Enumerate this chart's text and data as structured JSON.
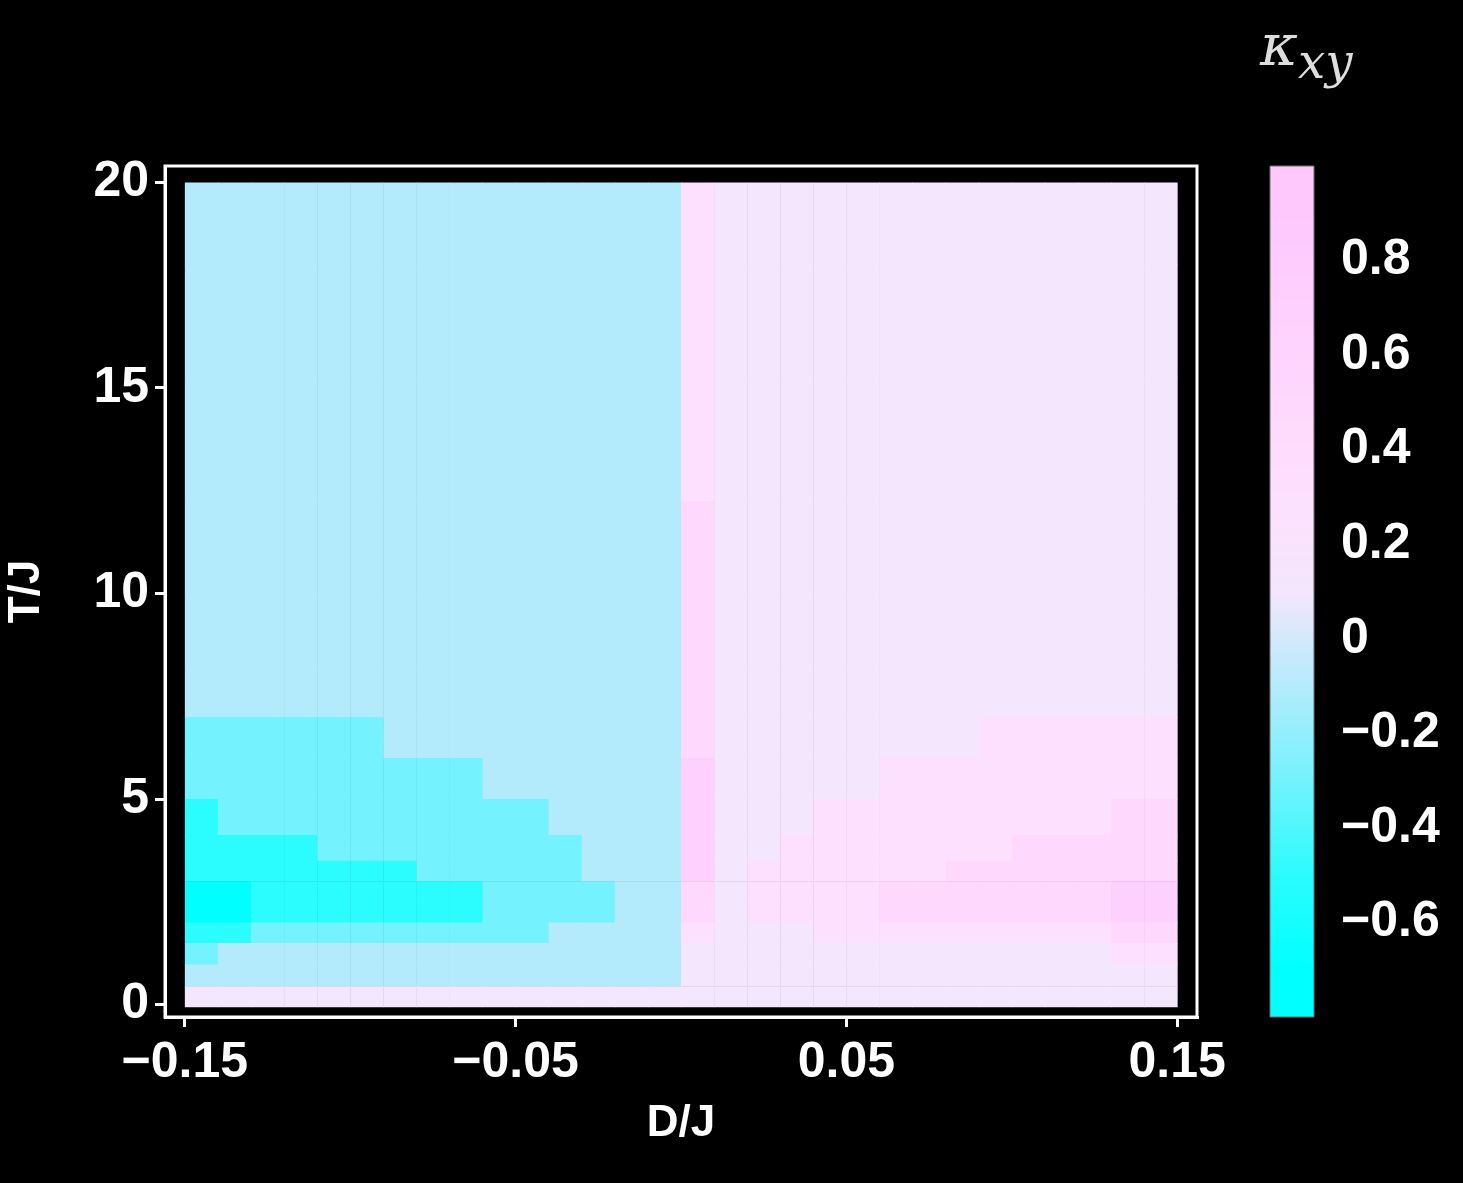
{
  "chart_data": {
    "type": "heatmap",
    "xlabel": "D/J",
    "ylabel": "T/J",
    "clabel": "κ$_{xy}$",
    "xlim": [
      -0.156,
      0.156
    ],
    "ylim": [
      -0.3,
      20.4
    ],
    "xticks": [
      {
        "value": -0.15,
        "label": "−0.15"
      },
      {
        "value": -0.05,
        "label": "−0.05"
      },
      0.05,
      0.15
    ],
    "yticks": [
      0,
      5,
      10,
      15,
      20
    ],
    "clim": [
      -0.8,
      1.0
    ],
    "cticks": [
      {
        "value": -0.6,
        "label": "−0.6"
      },
      {
        "value": -0.4,
        "label": "−0.4"
      },
      {
        "value": -0.2,
        "label": "−0.2"
      },
      0,
      0.2,
      0.4,
      0.6,
      0.8
    ],
    "colors": [
      "#00ffff",
      "#2bfcfd",
      "#74f2fd",
      "#b4ebfc",
      "#f4e6fc",
      "#fde0fd",
      "#fed8fd",
      "#fed0fd",
      "#fec8fd"
    ],
    "x": [
      -0.145,
      -0.135,
      -0.125,
      -0.115,
      -0.105,
      -0.095,
      -0.085,
      -0.075,
      -0.065,
      -0.055,
      -0.045,
      -0.035,
      -0.025,
      -0.015,
      -0.005,
      0.005,
      0.015,
      0.025,
      0.035,
      0.045,
      0.055,
      0.065,
      0.075,
      0.085,
      0.095,
      0.105,
      0.115,
      0.125,
      0.135,
      0.145
    ],
    "y": [
      19,
      17,
      13.5,
      11,
      9,
      7.5,
      6.5,
      5.5,
      4.5,
      3.75,
      3.25,
      2.75,
      2.25,
      1.75,
      1.25,
      0.7,
      0.2
    ],
    "cells": [
      [
        -0.1,
        -0.1,
        -0.1,
        -0.1,
        -0.1,
        -0.1,
        -0.1,
        -0.1,
        -0.1,
        -0.1,
        -0.1,
        -0.1,
        -0.1,
        -0.1,
        -0.1,
        0.3,
        0.1,
        0.1,
        0.1,
        0.1,
        0.1,
        0.1,
        0.1,
        0.1,
        0.1,
        0.1,
        0.1,
        0.1,
        0.1,
        0.1
      ],
      [
        -0.1,
        -0.1,
        -0.1,
        -0.1,
        -0.1,
        -0.1,
        -0.1,
        -0.1,
        -0.1,
        -0.1,
        -0.1,
        -0.1,
        -0.1,
        -0.1,
        -0.1,
        0.3,
        0.1,
        0.1,
        0.1,
        0.1,
        0.1,
        0.1,
        0.1,
        0.1,
        0.1,
        0.1,
        0.1,
        0.1,
        0.1,
        0.1
      ],
      [
        -0.1,
        -0.1,
        -0.1,
        -0.1,
        -0.1,
        -0.1,
        -0.1,
        -0.1,
        -0.1,
        -0.1,
        -0.1,
        -0.1,
        -0.1,
        -0.1,
        -0.1,
        0.3,
        0.1,
        0.1,
        0.1,
        0.1,
        0.1,
        0.1,
        0.1,
        0.1,
        0.1,
        0.1,
        0.1,
        0.1,
        0.1,
        0.1
      ],
      [
        -0.1,
        -0.1,
        -0.1,
        -0.1,
        -0.1,
        -0.1,
        -0.1,
        -0.1,
        -0.1,
        -0.1,
        -0.1,
        -0.1,
        -0.1,
        -0.1,
        -0.1,
        0.5,
        0.1,
        0.1,
        0.1,
        0.1,
        0.1,
        0.1,
        0.1,
        0.1,
        0.1,
        0.1,
        0.1,
        0.1,
        0.1,
        0.1
      ],
      [
        -0.1,
        -0.1,
        -0.1,
        -0.1,
        -0.1,
        -0.1,
        -0.1,
        -0.1,
        -0.1,
        -0.1,
        -0.1,
        -0.1,
        -0.1,
        -0.1,
        -0.1,
        0.5,
        0.1,
        0.1,
        0.1,
        0.1,
        0.1,
        0.1,
        0.1,
        0.1,
        0.1,
        0.1,
        0.1,
        0.1,
        0.1,
        0.1
      ],
      [
        -0.1,
        -0.1,
        -0.1,
        -0.1,
        -0.1,
        -0.1,
        -0.1,
        -0.1,
        -0.1,
        -0.1,
        -0.1,
        -0.1,
        -0.1,
        -0.1,
        -0.1,
        0.5,
        0.1,
        0.1,
        0.1,
        0.1,
        0.1,
        0.1,
        0.1,
        0.1,
        0.1,
        0.1,
        0.1,
        0.1,
        0.1,
        0.1
      ],
      [
        -0.3,
        -0.3,
        -0.3,
        -0.3,
        -0.3,
        -0.3,
        -0.1,
        -0.1,
        -0.1,
        -0.1,
        -0.1,
        -0.1,
        -0.1,
        -0.1,
        -0.1,
        0.5,
        0.1,
        0.1,
        0.1,
        0.1,
        0.1,
        0.1,
        0.1,
        0.1,
        0.3,
        0.3,
        0.3,
        0.3,
        0.3,
        0.3
      ],
      [
        -0.3,
        -0.3,
        -0.3,
        -0.3,
        -0.3,
        -0.3,
        -0.3,
        -0.3,
        -0.3,
        -0.1,
        -0.1,
        -0.1,
        -0.1,
        -0.1,
        -0.1,
        0.7,
        0.1,
        0.1,
        0.1,
        0.1,
        0.1,
        0.3,
        0.3,
        0.3,
        0.3,
        0.3,
        0.3,
        0.3,
        0.3,
        0.3
      ],
      [
        -0.5,
        -0.3,
        -0.3,
        -0.3,
        -0.3,
        -0.3,
        -0.3,
        -0.3,
        -0.3,
        -0.3,
        -0.3,
        -0.1,
        -0.1,
        -0.1,
        -0.1,
        0.7,
        0.1,
        0.1,
        0.1,
        0.3,
        0.3,
        0.3,
        0.3,
        0.3,
        0.3,
        0.3,
        0.3,
        0.3,
        0.5,
        0.5
      ],
      [
        -0.5,
        -0.5,
        -0.5,
        -0.5,
        -0.3,
        -0.3,
        -0.3,
        -0.3,
        -0.3,
        -0.3,
        -0.3,
        -0.3,
        -0.1,
        -0.1,
        -0.1,
        0.7,
        0.1,
        0.1,
        0.3,
        0.3,
        0.3,
        0.3,
        0.3,
        0.3,
        0.3,
        0.5,
        0.5,
        0.5,
        0.5,
        0.5
      ],
      [
        -0.5,
        -0.5,
        -0.5,
        -0.5,
        -0.5,
        -0.5,
        -0.5,
        -0.3,
        -0.3,
        -0.3,
        -0.3,
        -0.3,
        -0.1,
        -0.1,
        -0.1,
        0.7,
        0.1,
        0.3,
        0.3,
        0.3,
        0.3,
        0.3,
        0.3,
        0.5,
        0.5,
        0.5,
        0.5,
        0.5,
        0.5,
        0.5
      ],
      [
        -0.7,
        -0.7,
        -0.5,
        -0.5,
        -0.5,
        -0.5,
        -0.5,
        -0.5,
        -0.5,
        -0.3,
        -0.3,
        -0.3,
        -0.3,
        -0.1,
        -0.1,
        0.5,
        0.1,
        0.3,
        0.3,
        0.3,
        0.3,
        0.5,
        0.5,
        0.5,
        0.5,
        0.5,
        0.5,
        0.5,
        0.7,
        0.7
      ],
      [
        -0.7,
        -0.7,
        -0.5,
        -0.5,
        -0.5,
        -0.5,
        -0.5,
        -0.5,
        -0.5,
        -0.3,
        -0.3,
        -0.3,
        -0.3,
        -0.1,
        -0.1,
        0.5,
        0.1,
        0.3,
        0.3,
        0.3,
        0.3,
        0.5,
        0.5,
        0.5,
        0.5,
        0.5,
        0.5,
        0.5,
        0.7,
        0.7
      ],
      [
        -0.5,
        -0.5,
        -0.3,
        -0.3,
        -0.3,
        -0.3,
        -0.3,
        -0.3,
        -0.3,
        -0.3,
        -0.3,
        -0.1,
        -0.1,
        -0.1,
        -0.1,
        0.3,
        0.1,
        0.1,
        0.1,
        0.3,
        0.3,
        0.3,
        0.3,
        0.3,
        0.3,
        0.3,
        0.3,
        0.3,
        0.5,
        0.5
      ],
      [
        -0.3,
        -0.1,
        -0.1,
        -0.1,
        -0.1,
        -0.1,
        -0.1,
        -0.1,
        -0.1,
        -0.1,
        -0.1,
        -0.1,
        -0.1,
        -0.1,
        -0.1,
        0.1,
        0.1,
        0.1,
        0.1,
        0.1,
        0.1,
        0.1,
        0.1,
        0.1,
        0.1,
        0.1,
        0.1,
        0.1,
        0.3,
        0.3
      ],
      [
        -0.1,
        -0.1,
        -0.1,
        -0.1,
        -0.1,
        -0.1,
        -0.1,
        -0.1,
        -0.1,
        -0.1,
        -0.1,
        -0.1,
        -0.1,
        -0.1,
        -0.1,
        0.1,
        0.1,
        0.1,
        0.1,
        0.1,
        0.1,
        0.1,
        0.1,
        0.1,
        0.1,
        0.1,
        0.1,
        0.1,
        0.1,
        0.1
      ],
      [
        0.1,
        0.1,
        0.1,
        0.1,
        0.1,
        0.1,
        0.1,
        0.1,
        0.1,
        0.1,
        0.1,
        0.1,
        0.1,
        0.1,
        0.1,
        0.1,
        0.1,
        0.1,
        0.1,
        0.1,
        0.1,
        0.1,
        0.1,
        0.1,
        0.1,
        0.1,
        0.1,
        0.1,
        0.1,
        0.1
      ]
    ]
  }
}
